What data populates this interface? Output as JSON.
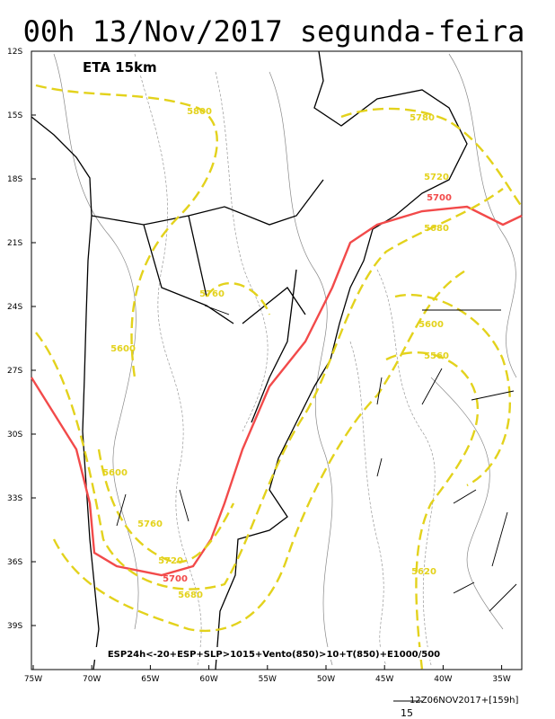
{
  "header": {
    "title": "00h 13/Nov/2017 segunda-feira",
    "model": "ETA 15km"
  },
  "lat_labels": [
    "12S",
    "15S",
    "18S",
    "21S",
    "24S",
    "27S",
    "30S",
    "33S",
    "36S",
    "39S"
  ],
  "lon_labels": [
    "75W",
    "70W",
    "65W",
    "60W",
    "55W",
    "50W",
    "45W",
    "40W",
    "35W"
  ],
  "contour_labels": [
    "5800",
    "5780",
    "5720",
    "5700",
    "5680",
    "5760",
    "5600",
    "5600",
    "5560",
    "5600",
    "5760",
    "5720",
    "5700",
    "5680",
    "5620"
  ],
  "caption": "ESP24h<-20+ESP+SLP>1015+Vento(850)>10+T(850)+E1000/500",
  "footer": {
    "run": "12Z06NOV2017+[159h]",
    "scale": "15"
  }
}
